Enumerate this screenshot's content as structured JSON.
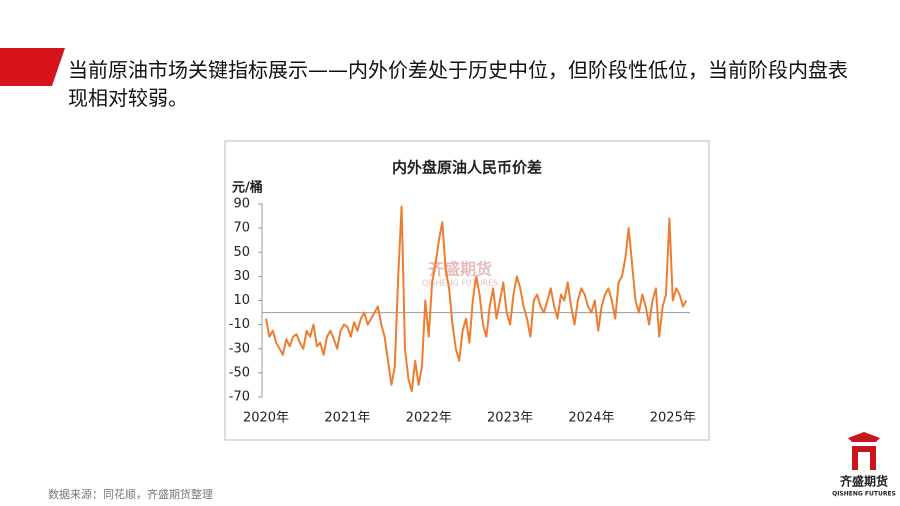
{
  "header": {
    "title": "当前原油市场关键指标展示——内外价差处于历史中位，但阶段性低位，当前阶段内盘表现相对较弱。"
  },
  "chart_data": {
    "type": "line",
    "title": "内外盘原油人民币价差",
    "y_label": "元/桶",
    "watermark": [
      "齐盛期货",
      "QISHENG FUTURES"
    ],
    "categories": [
      "2020年",
      null,
      null,
      null,
      null,
      null,
      null,
      null,
      null,
      null,
      null,
      null,
      null,
      null,
      null,
      null,
      null,
      null,
      null,
      null,
      null,
      null,
      null,
      null,
      "2021年",
      null,
      null,
      null,
      null,
      null,
      null,
      null,
      null,
      null,
      null,
      null,
      null,
      null,
      null,
      null,
      null,
      null,
      null,
      null,
      null,
      null,
      null,
      null,
      "2022年",
      null,
      null,
      null,
      null,
      null,
      null,
      null,
      null,
      null,
      null,
      null,
      null,
      null,
      null,
      null,
      null,
      null,
      null,
      null,
      null,
      null,
      null,
      null,
      "2023年",
      null,
      null,
      null,
      null,
      null,
      null,
      null,
      null,
      null,
      null,
      null,
      null,
      null,
      null,
      null,
      null,
      null,
      null,
      null,
      null,
      null,
      null,
      null,
      "2024年",
      null,
      null,
      null,
      null,
      null,
      null,
      null,
      null,
      null,
      null,
      null,
      null,
      null,
      null,
      null,
      null,
      null,
      null,
      null,
      null,
      null,
      null,
      null,
      "2025年",
      null,
      null,
      null,
      null
    ],
    "series": [
      {
        "name": "内外盘原油人民币价差",
        "color": "#ED7D31",
        "values": [
          -5,
          -20,
          -15,
          -25,
          -30,
          -35,
          -22,
          -28,
          -20,
          -18,
          -25,
          -30,
          -15,
          -20,
          -10,
          -28,
          -25,
          -35,
          -20,
          -15,
          -22,
          -30,
          -15,
          -10,
          -12,
          -20,
          -8,
          -15,
          -5,
          0,
          -10,
          -5,
          0,
          5,
          -10,
          -20,
          -40,
          -60,
          -45,
          30,
          88,
          -30,
          -55,
          -65,
          -40,
          -60,
          -45,
          10,
          -20,
          25,
          40,
          60,
          75,
          35,
          20,
          -10,
          -30,
          -40,
          -15,
          -5,
          -25,
          10,
          30,
          15,
          -10,
          -20,
          5,
          20,
          -5,
          10,
          25,
          0,
          -10,
          15,
          30,
          20,
          5,
          -5,
          -20,
          10,
          15,
          5,
          0,
          10,
          20,
          5,
          -5,
          15,
          10,
          25,
          5,
          -10,
          10,
          20,
          15,
          5,
          0,
          10,
          -15,
          5,
          15,
          20,
          10,
          -5,
          25,
          30,
          45,
          70,
          40,
          10,
          0,
          15,
          5,
          -10,
          10,
          20,
          -20,
          5,
          15,
          78,
          10,
          20,
          15,
          5,
          10
        ]
      }
    ],
    "ylim": [
      -70,
      90
    ],
    "yticks": [
      -70,
      -50,
      -30,
      -10,
      10,
      30,
      50,
      70,
      90
    ],
    "grid": false
  },
  "footer": {
    "source": "数据来源：同花顺，齐盛期货整理",
    "logo": [
      "齐盛期货",
      "QISHENG FUTURES"
    ]
  }
}
